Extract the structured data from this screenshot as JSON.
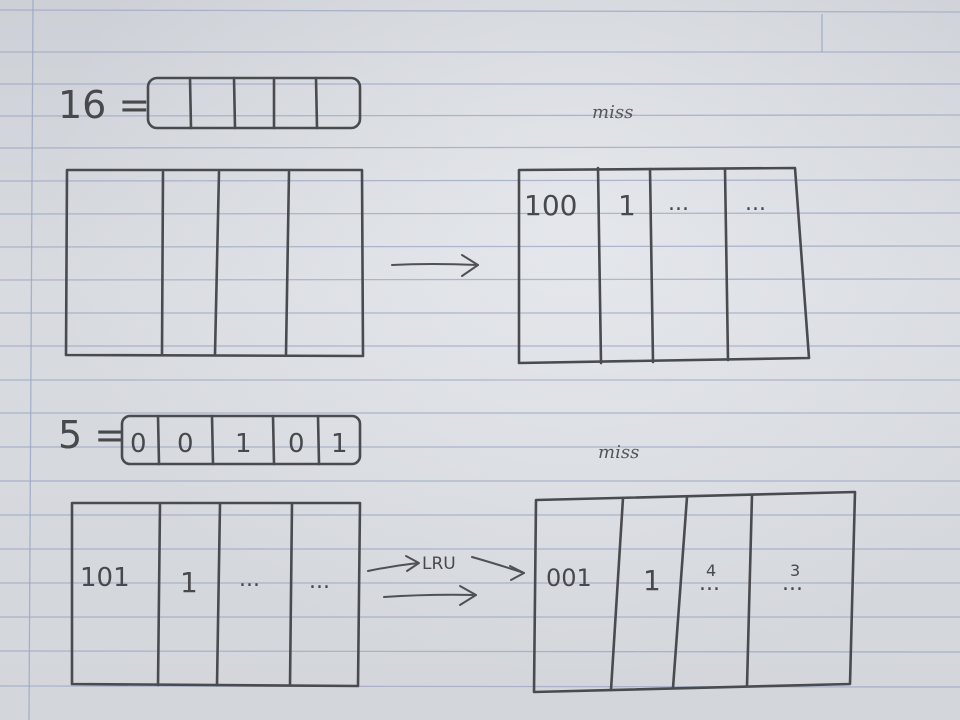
{
  "diagram1": {
    "label": "16 =",
    "miss": "miss",
    "cache_after": {
      "cells": [
        "100",
        "1",
        "...",
        "..."
      ]
    }
  },
  "diagram2": {
    "label": "5 =",
    "bits": [
      "0",
      "0",
      "1",
      "0",
      "1"
    ],
    "miss": "miss",
    "cache_before": {
      "cells": [
        "101",
        "1",
        "...",
        "..."
      ]
    },
    "arrow_label": "LRU",
    "cache_after": {
      "cells": [
        "001",
        "1",
        "...",
        "..."
      ],
      "annotations": [
        "4",
        "3"
      ]
    }
  }
}
